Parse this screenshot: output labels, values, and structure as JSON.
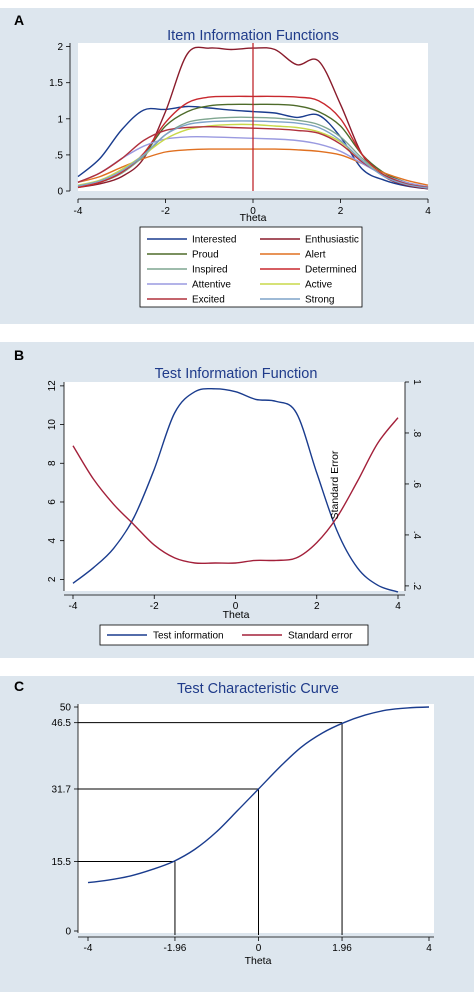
{
  "chart_data": [
    {
      "panel_label": "A",
      "type": "line",
      "title": "Item Information Functions",
      "xlabel": "Theta",
      "ylabel": "",
      "xlim": [
        -4,
        4
      ],
      "ylim": [
        0,
        2.05
      ],
      "xticks": [
        "-4",
        "-2",
        "0",
        "2",
        "4"
      ],
      "yticks": [
        "0",
        ".5",
        "1",
        "1.5",
        "2"
      ],
      "vline_x": 0,
      "vline_color": "#c0282e",
      "legend_position": "bottom",
      "series": [
        {
          "name": "Interested",
          "color": "#1a3c8e",
          "x": [
            -4,
            -3.5,
            -3,
            -2.5,
            -2,
            -1.5,
            -1,
            -0.5,
            0,
            0.5,
            1,
            1.5,
            2,
            2.5,
            3,
            3.5,
            4
          ],
          "y": [
            0.2,
            0.45,
            0.85,
            1.12,
            1.13,
            1.17,
            1.15,
            1.12,
            1.1,
            1.08,
            1.02,
            1.05,
            0.75,
            0.3,
            0.15,
            0.07,
            0.03
          ]
        },
        {
          "name": "Enthusiastic",
          "color": "#8a1c2c",
          "x": [
            -4,
            -3.5,
            -3,
            -2.5,
            -2,
            -1.5,
            -1,
            -0.5,
            0,
            0.5,
            1,
            1.5,
            2,
            2.5,
            3,
            3.5,
            4
          ],
          "y": [
            0.05,
            0.1,
            0.2,
            0.45,
            1.1,
            1.9,
            1.98,
            1.96,
            1.98,
            1.96,
            1.75,
            1.8,
            1.2,
            0.5,
            0.2,
            0.08,
            0.03
          ]
        },
        {
          "name": "Proud",
          "color": "#4e6b2a",
          "x": [
            -4,
            -3.5,
            -3,
            -2.5,
            -2,
            -1.5,
            -1,
            -0.5,
            0,
            0.5,
            1,
            1.5,
            2,
            2.5,
            3,
            3.5,
            4
          ],
          "y": [
            0.05,
            0.12,
            0.25,
            0.5,
            0.9,
            1.1,
            1.18,
            1.2,
            1.2,
            1.2,
            1.18,
            1.1,
            0.9,
            0.5,
            0.25,
            0.12,
            0.05
          ]
        },
        {
          "name": "Alert",
          "color": "#e07020",
          "x": [
            -4,
            -3.5,
            -3,
            -2.5,
            -2,
            -1.5,
            -1,
            -0.5,
            0,
            0.5,
            1,
            1.5,
            2,
            2.5,
            3,
            3.5,
            4
          ],
          "y": [
            0.12,
            0.2,
            0.33,
            0.45,
            0.54,
            0.57,
            0.58,
            0.58,
            0.58,
            0.58,
            0.57,
            0.55,
            0.5,
            0.38,
            0.25,
            0.15,
            0.08
          ]
        },
        {
          "name": "Inspired",
          "color": "#7fa690",
          "x": [
            -4,
            -3.5,
            -3,
            -2.5,
            -2,
            -1.5,
            -1,
            -0.5,
            0,
            0.5,
            1,
            1.5,
            2,
            2.5,
            3,
            3.5,
            4
          ],
          "y": [
            0.06,
            0.12,
            0.25,
            0.48,
            0.78,
            0.95,
            1.0,
            1.02,
            1.02,
            1.01,
            0.98,
            0.92,
            0.75,
            0.45,
            0.22,
            0.1,
            0.05
          ]
        },
        {
          "name": "Determined",
          "color": "#c8282e",
          "x": [
            -4,
            -3.5,
            -3,
            -2.5,
            -2,
            -1.5,
            -1,
            -0.5,
            0,
            0.5,
            1,
            1.5,
            2,
            2.5,
            3,
            3.5,
            4
          ],
          "y": [
            0.05,
            0.12,
            0.26,
            0.52,
            0.95,
            1.22,
            1.3,
            1.31,
            1.31,
            1.31,
            1.3,
            1.25,
            1.0,
            0.5,
            0.22,
            0.1,
            0.04
          ]
        },
        {
          "name": "Attentive",
          "color": "#9a9ae0",
          "x": [
            -4,
            -3.5,
            -3,
            -2.5,
            -2,
            -1.5,
            -1,
            -0.5,
            0,
            0.5,
            1,
            1.5,
            2,
            2.5,
            3,
            3.5,
            4
          ],
          "y": [
            0.12,
            0.25,
            0.45,
            0.62,
            0.72,
            0.75,
            0.75,
            0.74,
            0.73,
            0.72,
            0.7,
            0.65,
            0.55,
            0.38,
            0.22,
            0.12,
            0.06
          ]
        },
        {
          "name": "Active",
          "color": "#c8d84a",
          "x": [
            -4,
            -3.5,
            -3,
            -2.5,
            -2,
            -1.5,
            -1,
            -0.5,
            0,
            0.5,
            1,
            1.5,
            2,
            2.5,
            3,
            3.5,
            4
          ],
          "y": [
            0.08,
            0.15,
            0.3,
            0.5,
            0.72,
            0.85,
            0.9,
            0.92,
            0.92,
            0.9,
            0.88,
            0.82,
            0.68,
            0.42,
            0.22,
            0.1,
            0.05
          ]
        },
        {
          "name": "Excited",
          "color": "#b0303c",
          "x": [
            -4,
            -3.5,
            -3,
            -2.5,
            -2,
            -1.5,
            -1,
            -0.5,
            0,
            0.5,
            1,
            1.5,
            2,
            2.5,
            3,
            3.5,
            4
          ],
          "y": [
            0.12,
            0.25,
            0.45,
            0.7,
            0.84,
            0.88,
            0.89,
            0.88,
            0.87,
            0.86,
            0.84,
            0.8,
            0.65,
            0.4,
            0.22,
            0.1,
            0.05
          ]
        },
        {
          "name": "Strong",
          "color": "#7fa3c8",
          "x": [
            -4,
            -3.5,
            -3,
            -2.5,
            -2,
            -1.5,
            -1,
            -0.5,
            0,
            0.5,
            1,
            1.5,
            2,
            2.5,
            3,
            3.5,
            4
          ],
          "y": [
            0.07,
            0.14,
            0.28,
            0.5,
            0.78,
            0.92,
            0.96,
            0.97,
            0.97,
            0.96,
            0.94,
            0.88,
            0.7,
            0.42,
            0.2,
            0.09,
            0.04
          ]
        }
      ]
    },
    {
      "panel_label": "B",
      "type": "line",
      "title": "Test Information Function",
      "xlabel": "Theta",
      "ylabel": "",
      "y2label": "Standard Error",
      "xlim": [
        -4,
        4
      ],
      "ylim": [
        1.4,
        12.2
      ],
      "y2lim": [
        0.18,
        1.0
      ],
      "xticks": [
        "-4",
        "-2",
        "0",
        "2",
        "4"
      ],
      "yticks": [
        "2",
        "4",
        "6",
        "8",
        "10",
        "12"
      ],
      "y2ticks": [
        ".2",
        ".4",
        ".6",
        ".8",
        "1"
      ],
      "legend_position": "bottom",
      "series": [
        {
          "name": "Test information",
          "color": "#1a3c8e",
          "axis": "left",
          "x": [
            -4,
            -3.5,
            -3,
            -2.5,
            -2,
            -1.5,
            -1,
            -0.5,
            0,
            0.5,
            1,
            1.5,
            2,
            2.5,
            3,
            3.5,
            4
          ],
          "y": [
            1.8,
            2.6,
            3.6,
            5.2,
            7.7,
            10.6,
            11.7,
            11.85,
            11.7,
            11.3,
            11.2,
            10.6,
            7.5,
            4.5,
            2.6,
            1.7,
            1.35
          ]
        },
        {
          "name": "Standard error",
          "color": "#a3203a",
          "axis": "right",
          "x": [
            -4,
            -3.5,
            -3,
            -2.5,
            -2,
            -1.5,
            -1,
            -0.5,
            0,
            0.5,
            1,
            1.5,
            2,
            2.5,
            3,
            3.5,
            4
          ],
          "y": [
            0.75,
            0.62,
            0.52,
            0.44,
            0.36,
            0.31,
            0.29,
            0.29,
            0.29,
            0.3,
            0.3,
            0.31,
            0.37,
            0.47,
            0.61,
            0.76,
            0.86
          ]
        }
      ]
    },
    {
      "panel_label": "C",
      "type": "line",
      "title": "Test Characteristic Curve",
      "xlabel": "Theta",
      "ylabel": "",
      "xlim": [
        -4,
        4
      ],
      "ylim": [
        0,
        50
      ],
      "xticks": [
        "-4",
        "-1.96",
        "0",
        "1.96",
        "4"
      ],
      "xtick_values": [
        -4,
        -1.96,
        0,
        1.96,
        4
      ],
      "yticks": [
        "0",
        "15.5",
        "31.7",
        "46.5",
        "50"
      ],
      "ytick_values": [
        0,
        15.5,
        31.7,
        46.5,
        50
      ],
      "reference_points": [
        [
          -1.96,
          15.5
        ],
        [
          0,
          31.7
        ],
        [
          1.96,
          46.5
        ]
      ],
      "series": [
        {
          "name": "",
          "color": "#1a3c8e",
          "x": [
            -4,
            -3.5,
            -3,
            -2.5,
            -2,
            -1.5,
            -1,
            -0.5,
            0,
            0.5,
            1,
            1.5,
            2,
            2.5,
            3,
            3.5,
            4
          ],
          "y": [
            10.8,
            11.4,
            12.3,
            13.7,
            15.5,
            18.2,
            22,
            26.8,
            31.7,
            36.6,
            41,
            44.2,
            46.5,
            48.2,
            49.3,
            49.8,
            50
          ]
        }
      ]
    }
  ]
}
